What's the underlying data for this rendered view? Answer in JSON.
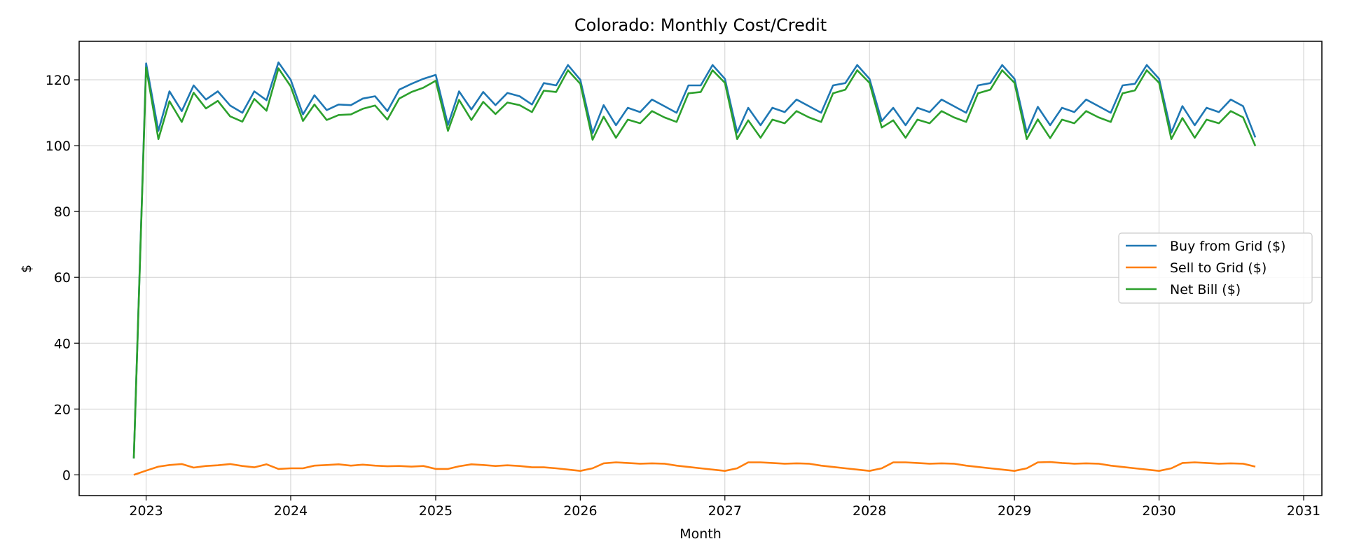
{
  "chart_data": {
    "type": "line",
    "title": "Colorado: Monthly Cost/Credit",
    "xlabel": "Month",
    "ylabel": "$",
    "x": [
      "2022-12",
      "2023-01",
      "2023-02",
      "2023-03",
      "2023-04",
      "2023-05",
      "2023-06",
      "2023-07",
      "2023-08",
      "2023-09",
      "2023-10",
      "2023-11",
      "2023-12",
      "2024-01",
      "2024-02",
      "2024-03",
      "2024-04",
      "2024-05",
      "2024-06",
      "2024-07",
      "2024-08",
      "2024-09",
      "2024-10",
      "2024-11",
      "2024-12",
      "2025-01",
      "2025-02",
      "2025-03",
      "2025-04",
      "2025-05",
      "2025-06",
      "2025-07",
      "2025-08",
      "2025-09",
      "2025-10",
      "2025-11",
      "2025-12",
      "2026-01",
      "2026-02",
      "2026-03",
      "2026-04",
      "2026-05",
      "2026-06",
      "2026-07",
      "2026-08",
      "2026-09",
      "2026-10",
      "2026-11",
      "2026-12",
      "2027-01",
      "2027-02",
      "2027-03",
      "2027-04",
      "2027-05",
      "2027-06",
      "2027-07",
      "2027-08",
      "2027-09",
      "2027-10",
      "2027-11",
      "2027-12",
      "2028-01",
      "2028-02",
      "2028-03",
      "2028-04",
      "2028-05",
      "2028-06",
      "2028-07",
      "2028-08",
      "2028-09",
      "2028-10",
      "2028-11",
      "2028-12",
      "2029-01",
      "2029-02",
      "2029-03",
      "2029-04",
      "2029-05",
      "2029-06",
      "2029-07",
      "2029-08",
      "2029-09",
      "2029-10",
      "2029-11",
      "2029-12",
      "2030-01",
      "2030-02",
      "2030-03",
      "2030-04",
      "2030-05",
      "2030-06",
      "2030-07",
      "2030-08",
      "2030-09"
    ],
    "series": [
      {
        "name": "Buy from Grid ($)",
        "color": "#1f77b4",
        "values": [
          5,
          125,
          104.5,
          116.5,
          110.5,
          118.3,
          114,
          116.5,
          112.2,
          110,
          116.5,
          113.8,
          125.3,
          120,
          109.5,
          115.3,
          110.8,
          112.5,
          112.3,
          114.3,
          115,
          110.5,
          117,
          118.8,
          120.3,
          121.5,
          106.3,
          116.5,
          111,
          116.3,
          112.3,
          116,
          115,
          112.5,
          119,
          118.3,
          124.5,
          120,
          103.8,
          112.3,
          106.2,
          111.5,
          110.2,
          114,
          112,
          110,
          118.3,
          118.3,
          124.5,
          120.3,
          104,
          111.5,
          106.2,
          111.5,
          110.2,
          114,
          112,
          110,
          118.3,
          119,
          124.5,
          120.3,
          107.5,
          111.5,
          106.2,
          111.5,
          110.2,
          114,
          112,
          110,
          118.3,
          119,
          124.5,
          120.3,
          104,
          111.8,
          106.2,
          111.5,
          110.2,
          114,
          112,
          110,
          118.3,
          118.8,
          124.5,
          120.3,
          104,
          112,
          106.2,
          111.5,
          110.2,
          114,
          112,
          102.5
        ]
      },
      {
        "name": "Sell to Grid ($)",
        "color": "#ff7f0e",
        "values": [
          0,
          1.3,
          2.5,
          3,
          3.3,
          2.2,
          2.7,
          2.9,
          3.3,
          2.7,
          2.3,
          3.2,
          1.8,
          2,
          2,
          2.8,
          3,
          3.2,
          2.8,
          3.1,
          2.8,
          2.6,
          2.7,
          2.5,
          2.7,
          1.8,
          1.8,
          2.6,
          3.2,
          3,
          2.7,
          2.9,
          2.7,
          2.3,
          2.3,
          2,
          1.6,
          1.2,
          2,
          3.5,
          3.8,
          3.6,
          3.4,
          3.5,
          3.4,
          2.8,
          2.4,
          2,
          1.6,
          1.2,
          2,
          3.8,
          3.8,
          3.6,
          3.4,
          3.5,
          3.4,
          2.8,
          2.4,
          2,
          1.6,
          1.2,
          2,
          3.8,
          3.8,
          3.6,
          3.4,
          3.5,
          3.4,
          2.8,
          2.4,
          2,
          1.6,
          1.2,
          2,
          3.8,
          3.9,
          3.6,
          3.4,
          3.5,
          3.4,
          2.8,
          2.4,
          2,
          1.6,
          1.2,
          2,
          3.6,
          3.8,
          3.6,
          3.4,
          3.5,
          3.4,
          2.5
        ]
      },
      {
        "name": "Net Bill ($)",
        "color": "#2ca02c",
        "values": [
          5,
          123.7,
          102,
          113.5,
          107.2,
          116.1,
          111.3,
          113.6,
          108.9,
          107.3,
          114.2,
          110.6,
          123.5,
          118,
          107.5,
          112.5,
          107.8,
          109.3,
          109.5,
          111.2,
          112.2,
          107.9,
          114.3,
          116.3,
          117.6,
          119.7,
          104.5,
          113.9,
          107.8,
          113.3,
          109.6,
          113.1,
          112.3,
          110.2,
          116.7,
          116.3,
          122.9,
          118.8,
          101.8,
          108.8,
          102.4,
          107.9,
          106.8,
          110.5,
          108.6,
          107.2,
          115.9,
          116.3,
          122.9,
          119.1,
          102,
          107.7,
          102.4,
          107.9,
          106.8,
          110.5,
          108.6,
          107.2,
          115.9,
          117,
          122.9,
          119.1,
          105.5,
          107.7,
          102.4,
          107.9,
          106.8,
          110.5,
          108.6,
          107.2,
          115.9,
          117,
          122.9,
          119.1,
          102,
          108,
          102.3,
          107.9,
          106.8,
          110.5,
          108.6,
          107.2,
          115.9,
          116.8,
          122.9,
          119.1,
          102,
          108.4,
          102.4,
          107.9,
          106.8,
          110.5,
          108.6,
          99.9
        ]
      }
    ],
    "x_ticks": [
      "2023",
      "2024",
      "2025",
      "2026",
      "2027",
      "2028",
      "2029",
      "2030",
      "2031"
    ],
    "y_ticks": [
      0,
      20,
      40,
      60,
      80,
      100,
      120
    ],
    "ylim": [
      -6.3,
      131.7
    ],
    "xlim": [
      "2022-07-16",
      "2031-02-16"
    ],
    "grid": true,
    "legend_position": "center-right"
  }
}
